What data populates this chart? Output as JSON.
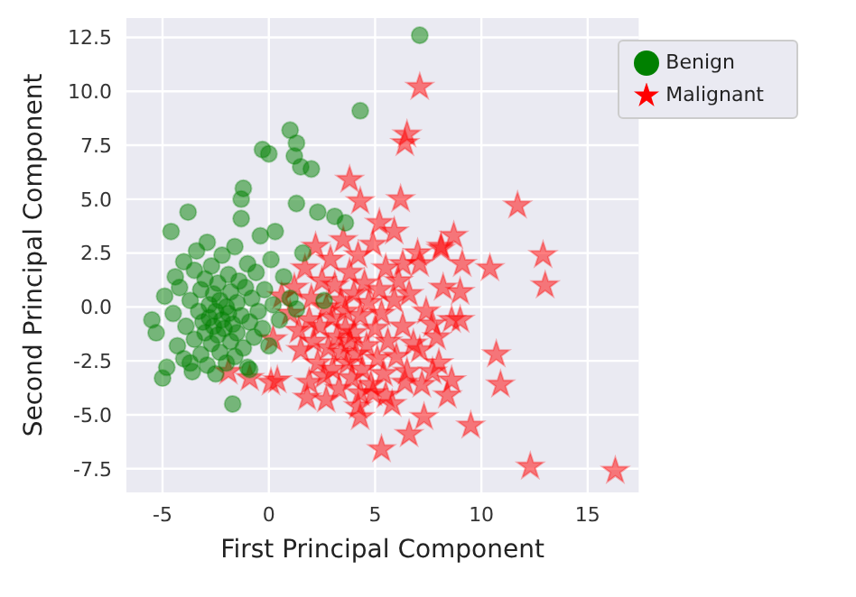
{
  "chart_data": {
    "type": "scatter",
    "xlabel": "First Principal Component",
    "ylabel": "Second Principal Component",
    "xlim": [
      -6.7,
      17.4
    ],
    "ylim": [
      -8.6,
      13.4
    ],
    "xticks": [
      -5,
      0,
      5,
      10,
      15
    ],
    "yticks": [
      {
        "value": -7.5,
        "label": "-7.5"
      },
      {
        "value": -5,
        "label": "-5.0"
      },
      {
        "value": -2.5,
        "label": "-2.5"
      },
      {
        "value": 0,
        "label": "0.0"
      },
      {
        "value": 2.5,
        "label": "2.5"
      },
      {
        "value": 5,
        "label": "5.0"
      },
      {
        "value": 7.5,
        "label": "7.5"
      },
      {
        "value": 10,
        "label": "10.0"
      },
      {
        "value": 12.5,
        "label": "12.5"
      }
    ],
    "grid": true,
    "legend": "top right",
    "series": [
      {
        "name": "Malignant",
        "color": "#ff0000",
        "marker": "star",
        "x": [
          -1.9,
          -0.9,
          0.1,
          0.4,
          0.2,
          0.6,
          1.4,
          1.9,
          2.7,
          1.8,
          4.3,
          4.2,
          1.0,
          1.2,
          1.5,
          1.7,
          1.9,
          2.0,
          2.1,
          2.2,
          2.3,
          2.4,
          2.5,
          2.6,
          2.7,
          2.8,
          2.9,
          3.0,
          3.0,
          3.1,
          3.2,
          3.3,
          3.4,
          3.4,
          3.5,
          3.6,
          3.6,
          3.7,
          3.8,
          3.8,
          3.9,
          4.0,
          4.0,
          4.1,
          4.2,
          4.3,
          4.4,
          4.5,
          4.6,
          4.7,
          4.8,
          4.9,
          5.0,
          5.1,
          5.2,
          5.3,
          5.4,
          5.5,
          5.6,
          5.8,
          5.9,
          6.0,
          6.1,
          6.3,
          6.5,
          6.6,
          6.8,
          7.0,
          7.4,
          7.9,
          8.2,
          8.0,
          3.8,
          4.3,
          5.2,
          5.9,
          6.2,
          6.5,
          6.4,
          7.1,
          8.7,
          8.1,
          9.1,
          10.4,
          11.7,
          12.9,
          13.0,
          9.0,
          8.6,
          9.0,
          7.7,
          7.1,
          7.7,
          8.6,
          8.4,
          7.2,
          6.4,
          5.5,
          4.9,
          4.3,
          10.7,
          10.9,
          9.5,
          7.3,
          6.6,
          5.3,
          12.3,
          16.3,
          6.3,
          7.1,
          8.1
        ],
        "values": [
          -3.0,
          -3.3,
          -3.5,
          -3.4,
          -1.5,
          0.5,
          -1.1,
          -3.5,
          -4.3,
          -4.2,
          -5.1,
          -4.6,
          -0.3,
          0.9,
          -2.0,
          1.8,
          -0.6,
          0.4,
          -1.6,
          2.8,
          -2.6,
          -0.9,
          1.2,
          -3.2,
          0.0,
          -1.9,
          2.2,
          -0.5,
          -2.9,
          1.0,
          -1.4,
          -3.8,
          0.3,
          -2.1,
          3.1,
          -1.0,
          -0.2,
          -2.6,
          1.6,
          -1.6,
          -3.3,
          0.6,
          -1.2,
          -2.2,
          2.4,
          -0.4,
          -2.9,
          1.1,
          -1.8,
          0.2,
          -3.6,
          2.9,
          -1.0,
          -2.4,
          0.8,
          -0.3,
          -3.1,
          1.8,
          -1.6,
          -4.5,
          0.3,
          -2.3,
          1.2,
          -0.9,
          -3.0,
          0.6,
          -1.7,
          2.5,
          -0.2,
          -1.4,
          0.9,
          -2.6,
          5.9,
          4.9,
          3.9,
          3.5,
          5.0,
          8.0,
          7.6,
          10.2,
          3.3,
          2.7,
          2.0,
          1.8,
          4.7,
          2.4,
          1.0,
          0.7,
          -0.6,
          -0.6,
          -0.8,
          -2.0,
          -3.0,
          -3.4,
          -4.1,
          -3.6,
          -3.5,
          -4.1,
          -4.0,
          -4.0,
          -2.2,
          -3.6,
          -5.5,
          -5.1,
          -5.9,
          -6.6,
          -7.4,
          -7.6,
          2.0,
          2.0,
          2.8
        ]
      },
      {
        "name": "Benign",
        "color": "#008000",
        "marker": "circle",
        "x": [
          -5.5,
          -5.3,
          -5.0,
          -4.8,
          -4.9,
          -4.6,
          -4.5,
          -4.4,
          -4.3,
          -4.2,
          -4.0,
          -4.0,
          -3.8,
          -3.9,
          -3.7,
          -3.6,
          -3.5,
          -3.5,
          -3.4,
          -3.3,
          -3.2,
          -3.2,
          -3.1,
          -3.0,
          -3.0,
          -2.9,
          -2.9,
          -2.8,
          -2.8,
          -2.7,
          -2.7,
          -2.6,
          -2.6,
          -2.5,
          -2.5,
          -2.4,
          -2.4,
          -2.3,
          -2.3,
          -2.2,
          -2.2,
          -2.1,
          -2.0,
          -2.0,
          -1.9,
          -1.9,
          -1.8,
          -1.8,
          -1.7,
          -1.7,
          -1.6,
          -1.6,
          -1.5,
          -1.5,
          -1.4,
          -1.3,
          -1.3,
          -1.2,
          -1.3,
          -1.2,
          -1.1,
          -1.0,
          -1.0,
          -0.9,
          -0.8,
          -0.7,
          -0.6,
          -0.5,
          -0.4,
          -0.3,
          -0.3,
          -0.2,
          0.0,
          0.0,
          0.1,
          0.2,
          0.3,
          0.5,
          0.7,
          1.0,
          1.0,
          1.2,
          1.3,
          1.3,
          1.5,
          1.6,
          2.0,
          2.3,
          2.6,
          3.1,
          3.6,
          4.3,
          7.1,
          -0.9,
          1.3,
          -3.7
        ],
        "values": [
          -0.6,
          -1.2,
          -3.3,
          -2.8,
          0.5,
          3.5,
          -0.3,
          1.4,
          -1.8,
          0.9,
          -2.4,
          2.1,
          4.4,
          -0.9,
          0.3,
          -3.0,
          1.7,
          -1.5,
          2.6,
          -0.2,
          0.8,
          -2.2,
          -0.7,
          1.3,
          -1.2,
          3.0,
          -2.7,
          0.1,
          -0.5,
          1.9,
          -1.7,
          -0.9,
          0.6,
          -0.2,
          -3.1,
          -1.3,
          1.1,
          0.3,
          -2.1,
          -0.6,
          2.4,
          -1.0,
          0.0,
          -2.6,
          1.5,
          -0.3,
          -1.6,
          0.7,
          -4.5,
          -0.8,
          2.8,
          -2.3,
          0.2,
          -1.2,
          1.2,
          5.0,
          4.1,
          5.5,
          -0.4,
          -1.9,
          0.9,
          -2.8,
          2.0,
          -0.7,
          0.4,
          -1.4,
          1.6,
          -0.2,
          3.3,
          7.3,
          -1.0,
          0.8,
          7.1,
          -1.8,
          2.2,
          0.1,
          3.5,
          -0.6,
          1.4,
          0.4,
          8.2,
          7.0,
          7.6,
          4.8,
          6.5,
          2.5,
          6.4,
          4.4,
          0.3,
          4.2,
          3.9,
          9.1,
          12.6,
          -2.9,
          -0.1,
          -2.6
        ]
      }
    ]
  }
}
